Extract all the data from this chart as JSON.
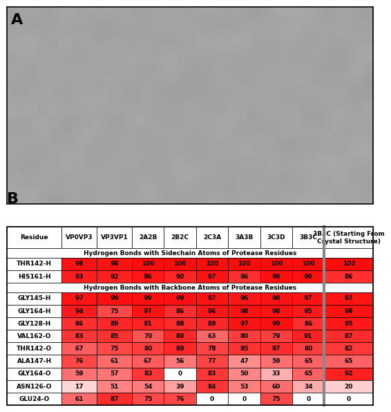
{
  "panel_a_label": "A",
  "panel_b_label": "B",
  "table_headers": [
    "Residue",
    "VP0VP3",
    "VP3VP1",
    "2A2B",
    "2B2C",
    "2C3A",
    "3A3B",
    "3C3D",
    "3B3C",
    "3B3C (Starting From\nCrystal Structure)"
  ],
  "section1_label": "Hydrogen Bonds with Sidechain Atoms of Protease Residues",
  "section2_label": "Hydrogen Bonds with Backbone Atoms of Protease Residues",
  "rows": [
    {
      "label": "THR142-H",
      "values": [
        98,
        98,
        100,
        100,
        100,
        100,
        100,
        100,
        100
      ],
      "section": 1
    },
    {
      "label": "HIS161-H",
      "values": [
        93,
        92,
        96,
        90,
        97,
        86,
        99,
        99,
        86
      ],
      "section": 1
    },
    {
      "label": "GLY145-H",
      "values": [
        97,
        99,
        99,
        99,
        97,
        96,
        98,
        97,
        97
      ],
      "section": 2
    },
    {
      "label": "GLY164-H",
      "values": [
        94,
        75,
        97,
        86,
        96,
        98,
        98,
        95,
        98
      ],
      "section": 2
    },
    {
      "label": "GLY128-H",
      "values": [
        86,
        89,
        91,
        88,
        89,
        97,
        99,
        86,
        95
      ],
      "section": 2
    },
    {
      "label": "VAL162-O",
      "values": [
        83,
        85,
        70,
        89,
        63,
        80,
        79,
        91,
        87
      ],
      "section": 2
    },
    {
      "label": "THR142-O",
      "values": [
        67,
        75,
        80,
        89,
        78,
        85,
        87,
        80,
        82
      ],
      "section": 2
    },
    {
      "label": "ALA147-H",
      "values": [
        76,
        61,
        67,
        56,
        77,
        47,
        59,
        65,
        65
      ],
      "section": 2
    },
    {
      "label": "GLY164-O",
      "values": [
        59,
        57,
        83,
        0,
        83,
        50,
        33,
        65,
        92
      ],
      "section": 2
    },
    {
      "label": "ASN126-O",
      "values": [
        17,
        51,
        54,
        39,
        84,
        53,
        60,
        34,
        20
      ],
      "section": 2
    },
    {
      "label": "GLU24-O",
      "values": [
        61,
        87,
        75,
        76,
        0,
        0,
        75,
        0,
        0
      ],
      "section": 2
    }
  ],
  "col_widths_rel": [
    1.4,
    0.9,
    0.9,
    0.82,
    0.82,
    0.82,
    0.82,
    0.82,
    0.82,
    1.25
  ],
  "table_fontsize": 6.5,
  "header_fontsize": 6.5,
  "fig_width": 5.5,
  "fig_height": 5.81,
  "fig_dpi": 100,
  "panel_a_bg": "#c8c8c8",
  "border_color": "#000000",
  "sep_line_color": "#888888",
  "sep_line_lw": 3.0,
  "cell_border_lw": 0.5,
  "outer_border_lw": 1.2
}
